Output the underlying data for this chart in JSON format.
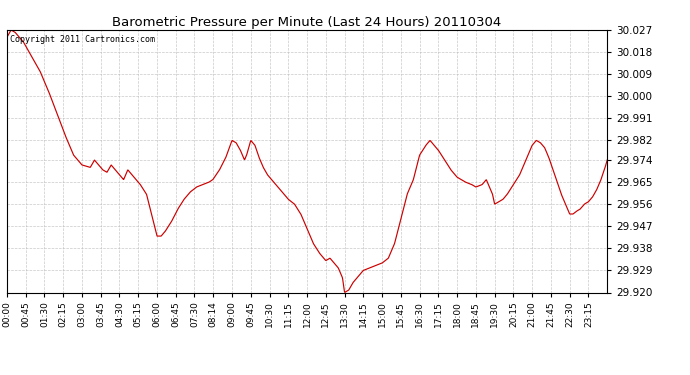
{
  "title": "Barometric Pressure per Minute (Last 24 Hours) 20110304",
  "copyright_text": "Copyright 2011 Cartronics.com",
  "background_color": "#ffffff",
  "plot_bg_color": "#ffffff",
  "line_color": "#cc0000",
  "grid_color": "#bbbbbb",
  "y_ticks": [
    29.92,
    29.929,
    29.938,
    29.947,
    29.956,
    29.965,
    29.974,
    29.982,
    29.991,
    30.0,
    30.009,
    30.018,
    30.027
  ],
  "y_min": 29.92,
  "y_max": 30.027,
  "x_tick_labels": [
    "00:00",
    "00:45",
    "01:30",
    "02:15",
    "03:00",
    "03:45",
    "04:30",
    "05:15",
    "06:00",
    "06:45",
    "07:30",
    "08:14",
    "09:00",
    "09:45",
    "10:30",
    "11:15",
    "12:00",
    "12:45",
    "13:30",
    "14:15",
    "15:00",
    "15:45",
    "16:30",
    "17:15",
    "18:00",
    "18:45",
    "19:30",
    "20:15",
    "21:00",
    "21:45",
    "22:30",
    "23:15"
  ],
  "keypoints": [
    [
      0,
      30.024
    ],
    [
      10,
      30.027
    ],
    [
      20,
      30.026
    ],
    [
      40,
      30.022
    ],
    [
      60,
      30.016
    ],
    [
      80,
      30.01
    ],
    [
      100,
      30.002
    ],
    [
      120,
      29.993
    ],
    [
      140,
      29.984
    ],
    [
      160,
      29.976
    ],
    [
      180,
      29.972
    ],
    [
      200,
      29.971
    ],
    [
      210,
      29.974
    ],
    [
      220,
      29.972
    ],
    [
      230,
      29.97
    ],
    [
      240,
      29.969
    ],
    [
      250,
      29.972
    ],
    [
      260,
      29.97
    ],
    [
      270,
      29.968
    ],
    [
      280,
      29.966
    ],
    [
      290,
      29.97
    ],
    [
      300,
      29.968
    ],
    [
      310,
      29.966
    ],
    [
      320,
      29.964
    ],
    [
      335,
      29.96
    ],
    [
      350,
      29.95
    ],
    [
      360,
      29.943
    ],
    [
      370,
      29.943
    ],
    [
      380,
      29.945
    ],
    [
      395,
      29.949
    ],
    [
      410,
      29.954
    ],
    [
      425,
      29.958
    ],
    [
      440,
      29.961
    ],
    [
      455,
      29.963
    ],
    [
      470,
      29.964
    ],
    [
      485,
      29.965
    ],
    [
      494,
      29.966
    ],
    [
      510,
      29.97
    ],
    [
      525,
      29.975
    ],
    [
      540,
      29.982
    ],
    [
      550,
      29.981
    ],
    [
      560,
      29.978
    ],
    [
      570,
      29.974
    ],
    [
      575,
      29.976
    ],
    [
      585,
      29.982
    ],
    [
      595,
      29.98
    ],
    [
      605,
      29.975
    ],
    [
      615,
      29.971
    ],
    [
      625,
      29.968
    ],
    [
      635,
      29.966
    ],
    [
      645,
      29.964
    ],
    [
      655,
      29.962
    ],
    [
      665,
      29.96
    ],
    [
      675,
      29.958
    ],
    [
      690,
      29.956
    ],
    [
      705,
      29.952
    ],
    [
      720,
      29.946
    ],
    [
      735,
      29.94
    ],
    [
      750,
      29.936
    ],
    [
      765,
      29.933
    ],
    [
      775,
      29.934
    ],
    [
      785,
      29.932
    ],
    [
      795,
      29.93
    ],
    [
      805,
      29.926
    ],
    [
      810,
      29.92
    ],
    [
      820,
      29.921
    ],
    [
      830,
      29.924
    ],
    [
      840,
      29.926
    ],
    [
      855,
      29.929
    ],
    [
      870,
      29.93
    ],
    [
      885,
      29.931
    ],
    [
      900,
      29.932
    ],
    [
      915,
      29.934
    ],
    [
      930,
      29.94
    ],
    [
      945,
      29.95
    ],
    [
      960,
      29.96
    ],
    [
      975,
      29.966
    ],
    [
      990,
      29.976
    ],
    [
      1005,
      29.98
    ],
    [
      1015,
      29.982
    ],
    [
      1025,
      29.98
    ],
    [
      1035,
      29.978
    ],
    [
      1050,
      29.974
    ],
    [
      1065,
      29.97
    ],
    [
      1080,
      29.967
    ],
    [
      1090,
      29.966
    ],
    [
      1100,
      29.965
    ],
    [
      1115,
      29.964
    ],
    [
      1125,
      29.963
    ],
    [
      1140,
      29.964
    ],
    [
      1150,
      29.966
    ],
    [
      1155,
      29.964
    ],
    [
      1165,
      29.96
    ],
    [
      1170,
      29.956
    ],
    [
      1180,
      29.957
    ],
    [
      1190,
      29.958
    ],
    [
      1200,
      29.96
    ],
    [
      1215,
      29.964
    ],
    [
      1230,
      29.968
    ],
    [
      1245,
      29.974
    ],
    [
      1260,
      29.98
    ],
    [
      1270,
      29.982
    ],
    [
      1280,
      29.981
    ],
    [
      1290,
      29.979
    ],
    [
      1300,
      29.975
    ],
    [
      1310,
      29.97
    ],
    [
      1320,
      29.965
    ],
    [
      1330,
      29.96
    ],
    [
      1340,
      29.956
    ],
    [
      1350,
      29.952
    ],
    [
      1358,
      29.952
    ],
    [
      1365,
      29.953
    ],
    [
      1375,
      29.954
    ],
    [
      1385,
      29.956
    ],
    [
      1395,
      29.957
    ],
    [
      1405,
      29.959
    ],
    [
      1415,
      29.962
    ],
    [
      1425,
      29.966
    ],
    [
      1435,
      29.971
    ],
    [
      1440,
      29.974
    ]
  ]
}
